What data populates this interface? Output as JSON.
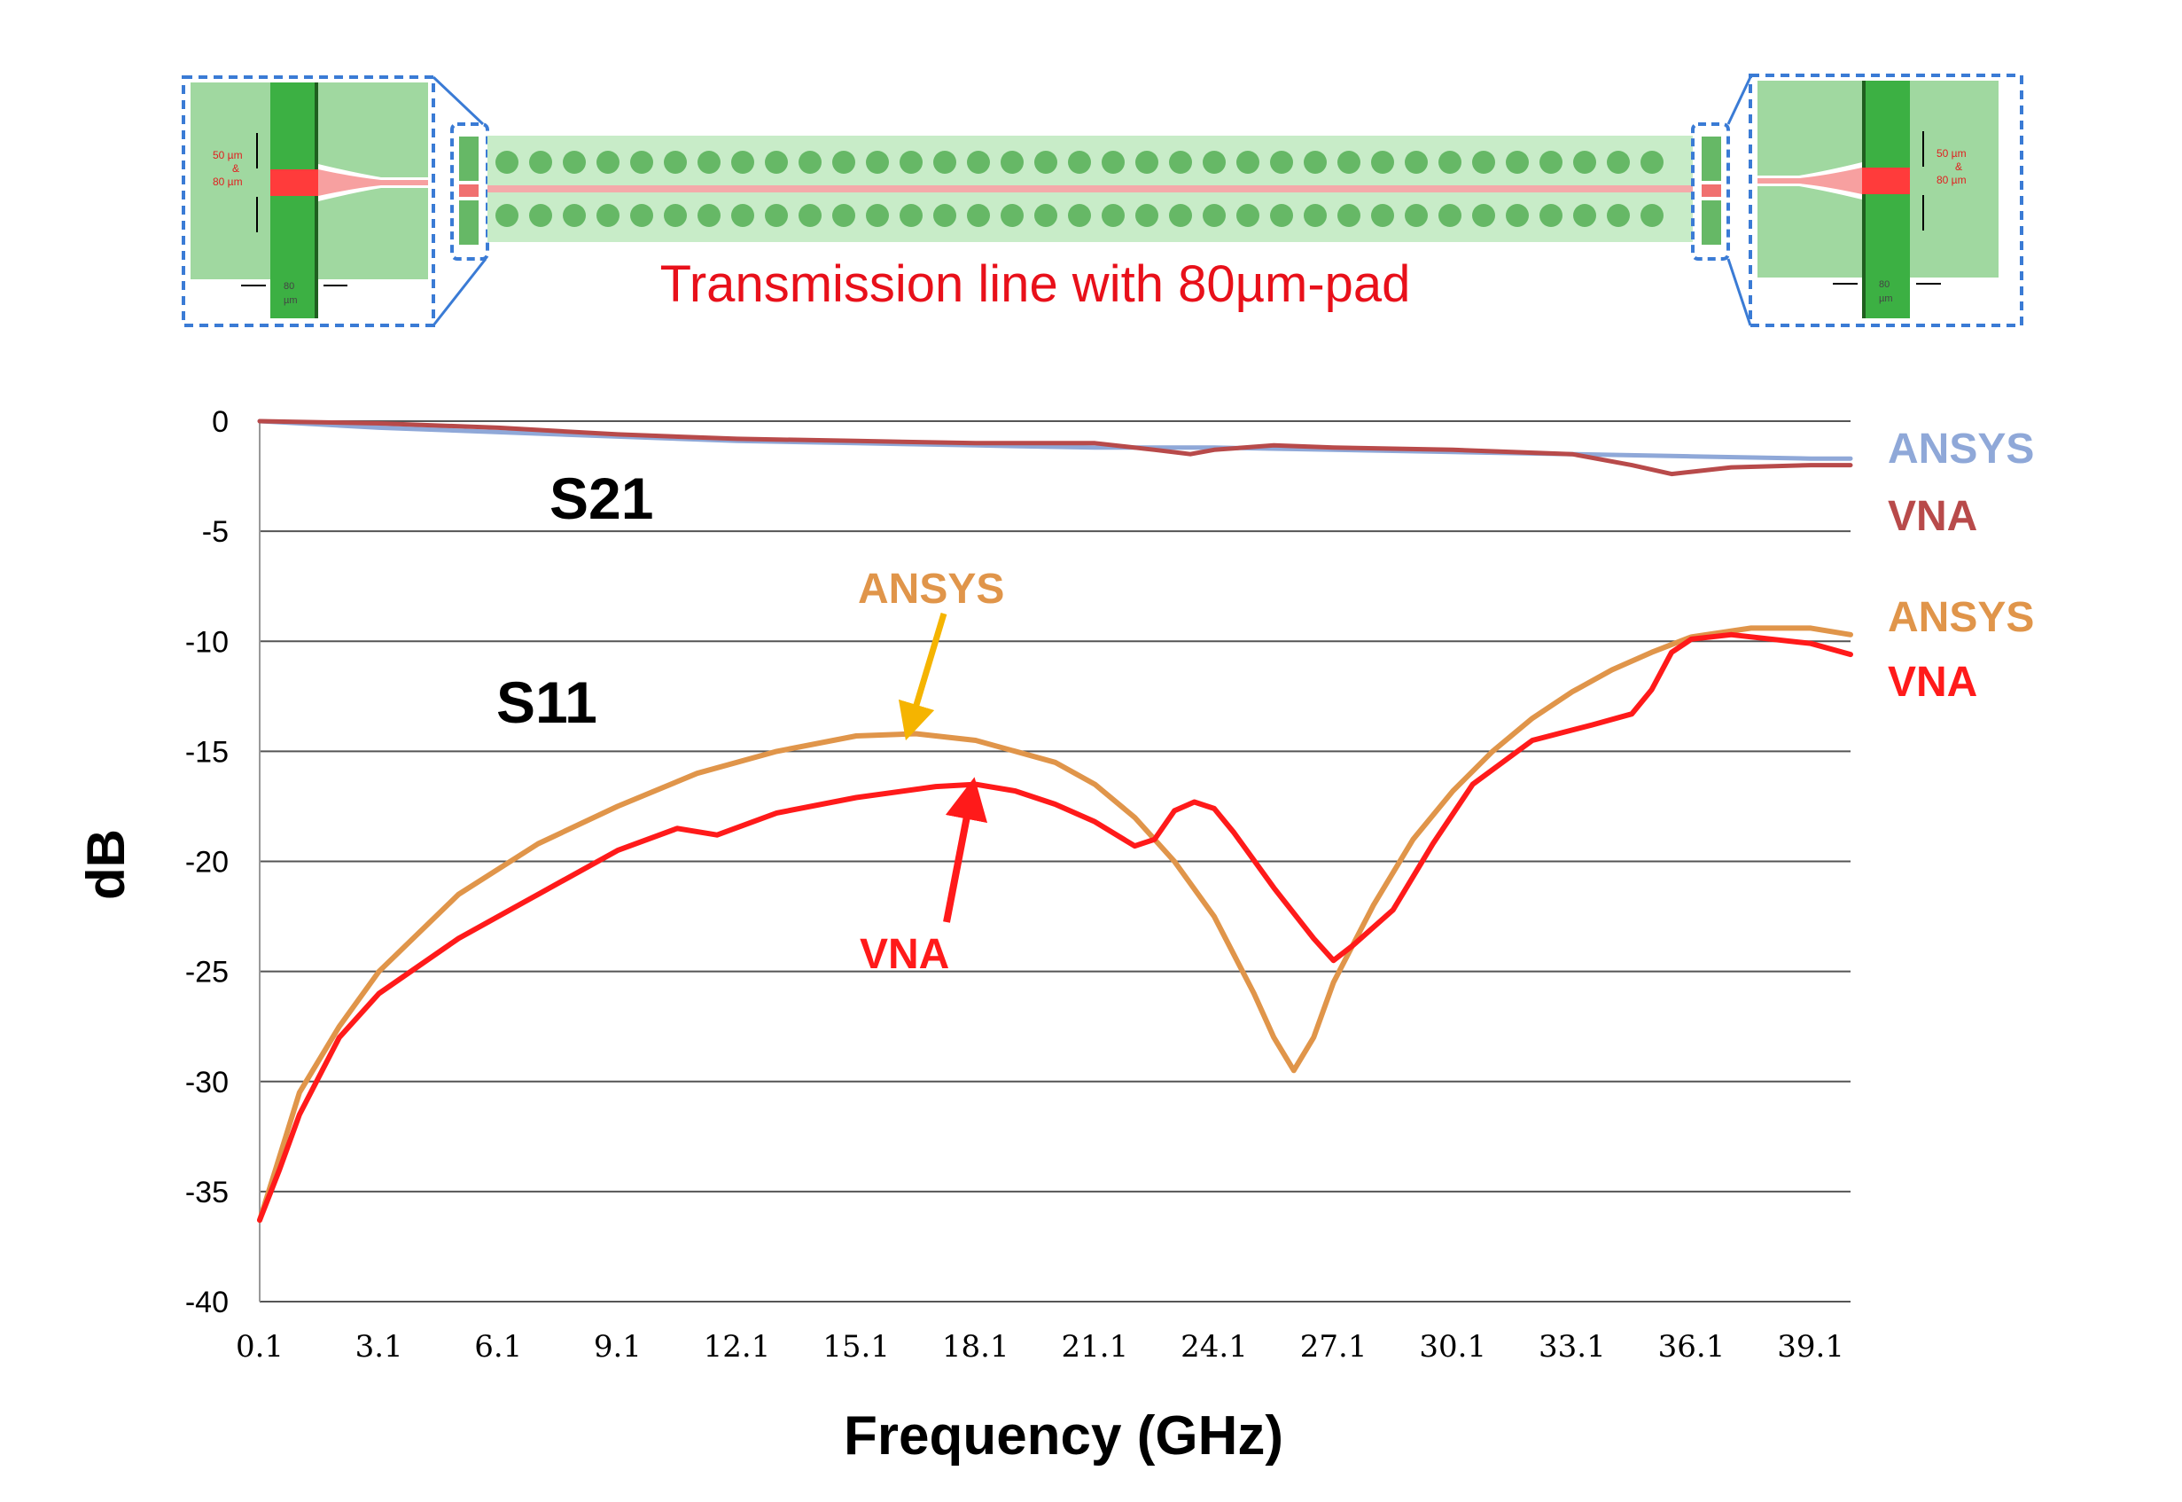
{
  "diagram": {
    "caption": "Transmission line with 80µm-pad",
    "left_inset": {
      "dim_top": "50 µm",
      "dim_amp": "&",
      "dim_bot": "80 µm",
      "dim_width": "80",
      "dim_width_unit": "µm"
    },
    "right_inset": {
      "dim_top": "50 µm",
      "dim_amp": "&",
      "dim_bot": "80 µm",
      "dim_width": "80",
      "dim_width_unit": "µm"
    },
    "colors": {
      "substrate": "#a0d8a0",
      "via": "#66b866",
      "pad_dark": "#3cb043",
      "trace": "#f08080",
      "pad_red": "#ff3b3b",
      "dashed_box": "#3a7bd5"
    }
  },
  "chart_data": {
    "type": "line",
    "xlabel": "Frequency (GHz)",
    "ylabel": "dB",
    "x_ticks": [
      "0.1",
      "3.1",
      "6.1",
      "9.1",
      "12.1",
      "15.1",
      "18.1",
      "21.1",
      "24.1",
      "27.1",
      "30.1",
      "33.1",
      "36.1",
      "39.1"
    ],
    "y_ticks": [
      "0",
      "-5",
      "-10",
      "-15",
      "-20",
      "-25",
      "-30",
      "-35",
      "-40"
    ],
    "xlim": [
      0.1,
      40.1
    ],
    "ylim": [
      -40,
      0
    ],
    "grid": "horizontal",
    "group_labels": {
      "s21": "S21",
      "s11": "S11"
    },
    "series": [
      {
        "name": "ANSYS",
        "group": "S21",
        "color": "#8fa8d8",
        "x": [
          0.1,
          3.1,
          6.1,
          9.1,
          12.1,
          15.1,
          18.1,
          21.1,
          24.1,
          27.1,
          30.1,
          33.1,
          36.1,
          39.1,
          40.1
        ],
        "y": [
          0,
          -0.3,
          -0.5,
          -0.7,
          -0.9,
          -1.0,
          -1.1,
          -1.2,
          -1.2,
          -1.3,
          -1.4,
          -1.5,
          -1.6,
          -1.7,
          -1.7
        ]
      },
      {
        "name": "VNA",
        "group": "S21",
        "color": "#b84a4a",
        "x": [
          0.1,
          3.1,
          6.1,
          9.1,
          12.1,
          15.1,
          18.1,
          21.1,
          22.6,
          23.5,
          24.1,
          25.6,
          27.1,
          30.1,
          33.1,
          34.6,
          35.6,
          36.1,
          37.1,
          39.1,
          40.1
        ],
        "y": [
          0,
          -0.1,
          -0.3,
          -0.6,
          -0.8,
          -0.9,
          -1.0,
          -1.0,
          -1.3,
          -1.5,
          -1.3,
          -1.1,
          -1.2,
          -1.3,
          -1.5,
          -2.0,
          -2.4,
          -2.3,
          -2.1,
          -2.0,
          -2.0
        ]
      },
      {
        "name": "ANSYS",
        "group": "S11",
        "color": "#e0954a",
        "x": [
          0.1,
          0.5,
          1.1,
          2.1,
          3.1,
          5.1,
          7.1,
          9.1,
          11.1,
          13.1,
          15.1,
          16.6,
          18.1,
          20.1,
          21.1,
          22.1,
          23.1,
          24.1,
          25.1,
          25.6,
          26.1,
          26.6,
          27.1,
          28.1,
          29.1,
          30.1,
          31.1,
          32.1,
          33.1,
          34.1,
          35.1,
          36.1,
          37.6,
          39.1,
          40.1
        ],
        "y": [
          -36.3,
          -34,
          -30.5,
          -27.5,
          -25,
          -21.5,
          -19.2,
          -17.5,
          -16,
          -15,
          -14.3,
          -14.2,
          -14.5,
          -15.5,
          -16.5,
          -18,
          -20,
          -22.5,
          -26,
          -28,
          -29.5,
          -28,
          -25.5,
          -22,
          -19,
          -16.8,
          -15,
          -13.5,
          -12.3,
          -11.3,
          -10.5,
          -9.8,
          -9.4,
          -9.4,
          -9.7
        ]
      },
      {
        "name": "VNA",
        "group": "S11",
        "color": "#ff1a1a",
        "x": [
          0.1,
          0.6,
          1.1,
          2.1,
          3.1,
          5.1,
          7.1,
          9.1,
          10.6,
          11.6,
          13.1,
          15.1,
          17.1,
          18.1,
          19.1,
          20.1,
          21.1,
          22.1,
          22.6,
          23.1,
          23.6,
          24.1,
          24.6,
          25.6,
          26.6,
          27.1,
          27.6,
          28.6,
          29.6,
          30.6,
          32.1,
          33.6,
          34.6,
          35.1,
          35.6,
          36.1,
          37.1,
          38.1,
          39.1,
          40.1
        ],
        "y": [
          -36.3,
          -34,
          -31.5,
          -28,
          -26,
          -23.5,
          -21.5,
          -19.5,
          -18.5,
          -18.8,
          -17.8,
          -17.1,
          -16.6,
          -16.5,
          -16.8,
          -17.4,
          -18.2,
          -19.3,
          -19,
          -17.7,
          -17.3,
          -17.6,
          -18.7,
          -21.2,
          -23.5,
          -24.5,
          -23.8,
          -22.2,
          -19.2,
          -16.5,
          -14.5,
          -13.8,
          -13.3,
          -12.2,
          -10.5,
          -9.9,
          -9.7,
          -9.9,
          -10.1,
          -10.6
        ]
      }
    ]
  }
}
